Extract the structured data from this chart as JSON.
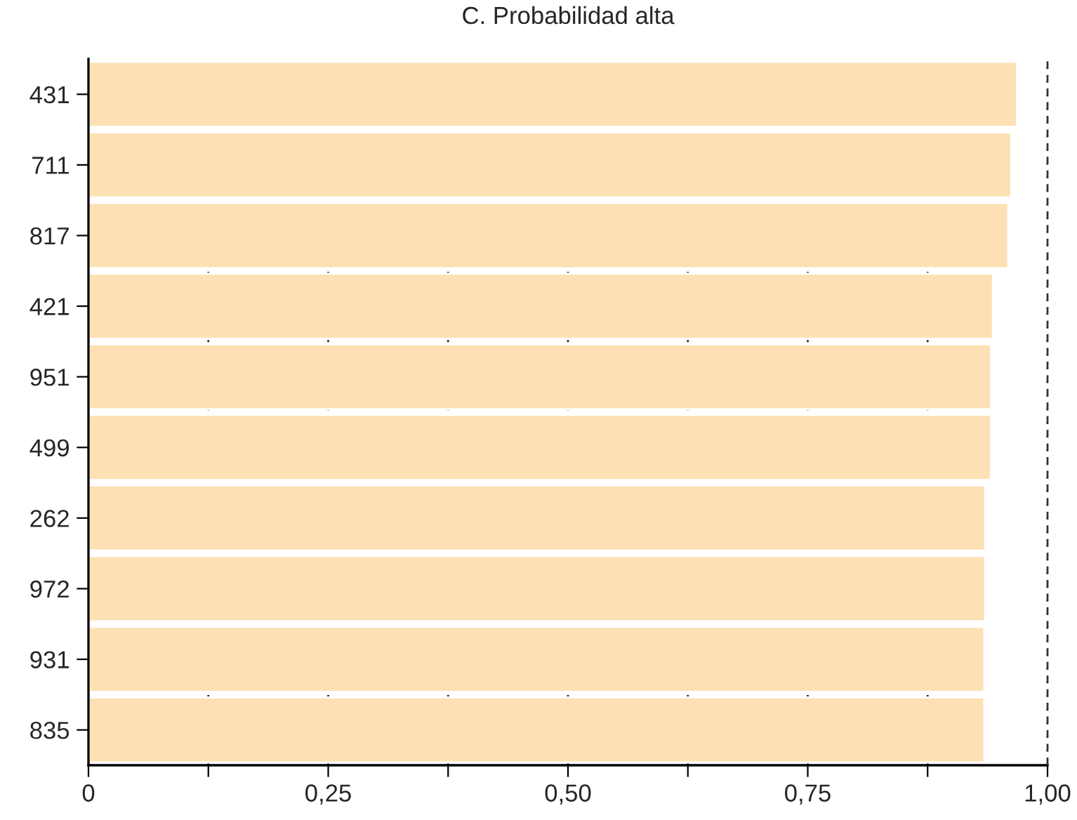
{
  "chart_data": {
    "type": "bar",
    "title": "C. Probabilidad alta",
    "orientation": "horizontal",
    "categories": [
      "431",
      "711",
      "817",
      "421",
      "951",
      "499",
      "262",
      "972",
      "931",
      "835"
    ],
    "values": [
      0.968,
      0.962,
      0.959,
      0.943,
      0.941,
      0.941,
      0.935,
      0.935,
      0.934,
      0.934
    ],
    "color": "#fde0b4",
    "xlim": [
      0,
      1
    ],
    "xticks": [
      0,
      {
        "value": 0.125,
        "label": null
      },
      {
        "value": 0.25,
        "label": "0,25"
      },
      {
        "value": 0.375,
        "label": null
      },
      {
        "value": 0.5,
        "label": "0,50"
      },
      {
        "value": 0.625,
        "label": null
      },
      {
        "value": 0.75,
        "label": "0,75"
      },
      {
        "value": 0.875,
        "label": null
      },
      {
        "value": 1,
        "label": "1,00"
      }
    ],
    "grid": "x",
    "ref_lines": [
      {
        "axis": "x",
        "value": 1,
        "line_style": "dashed",
        "color": "#333333"
      }
    ]
  }
}
